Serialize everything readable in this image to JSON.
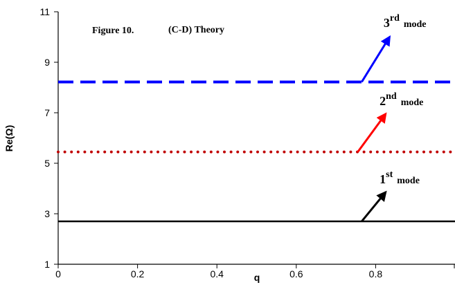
{
  "chart_data": {
    "type": "line",
    "title": "Figure 10.",
    "subtitle": "(C-D) Theory",
    "xlabel": "q",
    "ylabel": "Re(Ω)",
    "xlim": [
      0,
      1
    ],
    "ylim": [
      1,
      11
    ],
    "x_ticks": [
      "0",
      "0.2",
      "0.4",
      "0.6",
      "0.8"
    ],
    "y_ticks": [
      "1",
      "3",
      "5",
      "7",
      "9",
      "11"
    ],
    "grid": false,
    "series": [
      {
        "name": "1st mode",
        "x": [
          0,
          1
        ],
        "y": [
          2.7,
          2.7
        ],
        "color": "#000000",
        "style": "solid"
      },
      {
        "name": "2nd mode",
        "x": [
          0,
          1
        ],
        "y": [
          5.45,
          5.45
        ],
        "color": "#c00000",
        "style": "dotted"
      },
      {
        "name": "3rd mode",
        "x": [
          0,
          1
        ],
        "y": [
          8.22,
          8.22
        ],
        "color": "#0000ff",
        "style": "dashed"
      }
    ],
    "annotations": [
      {
        "base": "1",
        "sup": "st",
        "tail": "mode",
        "arrow_from": [
          0.765,
          2.7
        ],
        "arrow_to": [
          0.825,
          3.85
        ],
        "text_at": [
          0.81,
          4.2
        ],
        "color": "#000000"
      },
      {
        "base": "2",
        "sup": "nd",
        "tail": "mode",
        "arrow_from": [
          0.755,
          5.45
        ],
        "arrow_to": [
          0.825,
          6.95
        ],
        "text_at": [
          0.81,
          7.3
        ],
        "color": "#ff0000"
      },
      {
        "base": "3",
        "sup": "rd",
        "tail": "mode",
        "arrow_from": [
          0.765,
          8.22
        ],
        "arrow_to": [
          0.835,
          10.0
        ],
        "text_at": [
          0.82,
          10.4
        ],
        "color": "#0000ff"
      }
    ]
  }
}
